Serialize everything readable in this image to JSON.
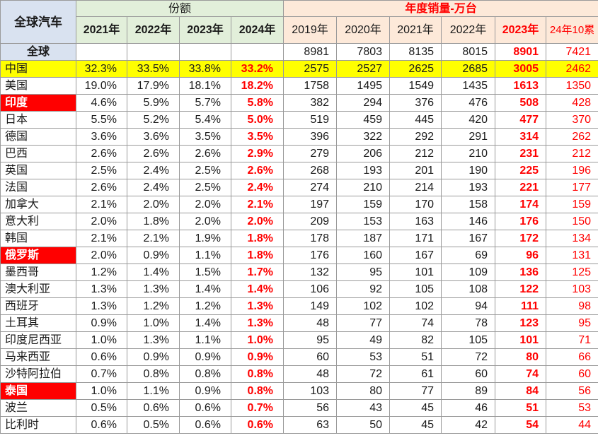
{
  "header": {
    "corner": "全球汽车",
    "share_group": "份额",
    "sales_group": "年度销量-万台",
    "share_years": [
      "2021年",
      "2022年",
      "2023年",
      "2024年"
    ],
    "sales_years": [
      "2019年",
      "2020年",
      "2021年",
      "2022年",
      "2023年",
      "24年10累"
    ]
  },
  "world": {
    "name": "全球",
    "sales": [
      "8981",
      "7803",
      "8135",
      "8015",
      "8901",
      "7421"
    ]
  },
  "rows": [
    {
      "name": "中国",
      "share": [
        "32.3%",
        "33.5%",
        "33.8%",
        "33.2%"
      ],
      "sales": [
        "2575",
        "2527",
        "2625",
        "2685",
        "3005",
        "2462"
      ]
    },
    {
      "name": "美国",
      "share": [
        "19.0%",
        "17.9%",
        "18.1%",
        "18.2%"
      ],
      "sales": [
        "1758",
        "1495",
        "1549",
        "1435",
        "1613",
        "1350"
      ]
    },
    {
      "name": "印度",
      "share": [
        "4.6%",
        "5.9%",
        "5.7%",
        "5.8%"
      ],
      "sales": [
        "382",
        "294",
        "376",
        "476",
        "508",
        "428"
      ]
    },
    {
      "name": "日本",
      "share": [
        "5.5%",
        "5.2%",
        "5.4%",
        "5.0%"
      ],
      "sales": [
        "519",
        "459",
        "445",
        "420",
        "477",
        "370"
      ]
    },
    {
      "name": "德国",
      "share": [
        "3.6%",
        "3.6%",
        "3.5%",
        "3.5%"
      ],
      "sales": [
        "396",
        "322",
        "292",
        "291",
        "314",
        "262"
      ]
    },
    {
      "name": "巴西",
      "share": [
        "2.6%",
        "2.6%",
        "2.6%",
        "2.9%"
      ],
      "sales": [
        "279",
        "206",
        "212",
        "210",
        "231",
        "212"
      ]
    },
    {
      "name": "英国",
      "share": [
        "2.5%",
        "2.4%",
        "2.5%",
        "2.6%"
      ],
      "sales": [
        "268",
        "193",
        "201",
        "190",
        "225",
        "196"
      ]
    },
    {
      "name": "法国",
      "share": [
        "2.6%",
        "2.4%",
        "2.5%",
        "2.4%"
      ],
      "sales": [
        "274",
        "210",
        "214",
        "193",
        "221",
        "177"
      ]
    },
    {
      "name": "加拿大",
      "share": [
        "2.1%",
        "2.0%",
        "2.0%",
        "2.1%"
      ],
      "sales": [
        "197",
        "159",
        "170",
        "158",
        "174",
        "159"
      ]
    },
    {
      "name": "意大利",
      "share": [
        "2.0%",
        "1.8%",
        "2.0%",
        "2.0%"
      ],
      "sales": [
        "209",
        "153",
        "163",
        "146",
        "176",
        "150"
      ]
    },
    {
      "name": "韩国",
      "share": [
        "2.1%",
        "2.1%",
        "1.9%",
        "1.8%"
      ],
      "sales": [
        "178",
        "187",
        "171",
        "167",
        "172",
        "134"
      ]
    },
    {
      "name": "俄罗斯",
      "share": [
        "2.0%",
        "0.9%",
        "1.1%",
        "1.8%"
      ],
      "sales": [
        "176",
        "160",
        "167",
        "69",
        "96",
        "131"
      ]
    },
    {
      "name": "墨西哥",
      "share": [
        "1.2%",
        "1.4%",
        "1.5%",
        "1.7%"
      ],
      "sales": [
        "132",
        "95",
        "101",
        "109",
        "136",
        "125"
      ]
    },
    {
      "name": "澳大利亚",
      "share": [
        "1.3%",
        "1.3%",
        "1.4%",
        "1.4%"
      ],
      "sales": [
        "106",
        "92",
        "105",
        "108",
        "122",
        "103"
      ]
    },
    {
      "name": "西班牙",
      "share": [
        "1.3%",
        "1.2%",
        "1.2%",
        "1.3%"
      ],
      "sales": [
        "149",
        "102",
        "102",
        "94",
        "111",
        "98"
      ]
    },
    {
      "name": "土耳其",
      "share": [
        "0.9%",
        "1.0%",
        "1.4%",
        "1.3%"
      ],
      "sales": [
        "48",
        "77",
        "74",
        "78",
        "123",
        "95"
      ]
    },
    {
      "name": "印度尼西亚",
      "share": [
        "1.0%",
        "1.3%",
        "1.1%",
        "1.0%"
      ],
      "sales": [
        "95",
        "49",
        "82",
        "105",
        "101",
        "71"
      ]
    },
    {
      "name": "马来西亚",
      "share": [
        "0.6%",
        "0.9%",
        "0.9%",
        "0.9%"
      ],
      "sales": [
        "60",
        "53",
        "51",
        "72",
        "80",
        "66"
      ]
    },
    {
      "name": "沙特阿拉伯",
      "share": [
        "0.7%",
        "0.8%",
        "0.8%",
        "0.8%"
      ],
      "sales": [
        "48",
        "72",
        "61",
        "60",
        "74",
        "60"
      ]
    },
    {
      "name": "泰国",
      "share": [
        "1.0%",
        "1.1%",
        "0.9%",
        "0.8%"
      ],
      "sales": [
        "103",
        "80",
        "77",
        "89",
        "84",
        "56"
      ]
    },
    {
      "name": "波兰",
      "share": [
        "0.5%",
        "0.6%",
        "0.6%",
        "0.7%"
      ],
      "sales": [
        "56",
        "43",
        "45",
        "46",
        "51",
        "53"
      ]
    },
    {
      "name": "比利时",
      "share": [
        "0.6%",
        "0.5%",
        "0.6%",
        "0.6%"
      ],
      "sales": [
        "63",
        "50",
        "45",
        "42",
        "54",
        "44"
      ]
    }
  ],
  "highlight_rows": [
    "中国"
  ],
  "emphasized_countries": [
    "印度",
    "俄罗斯",
    "泰国"
  ],
  "colors": {
    "accent_red": "#ff0000",
    "china_row_yellow": "#ffff00",
    "share_header_green": "#e2efda",
    "sales_header_peach": "#fde9d9",
    "corner_blue": "#d9e2f0"
  }
}
